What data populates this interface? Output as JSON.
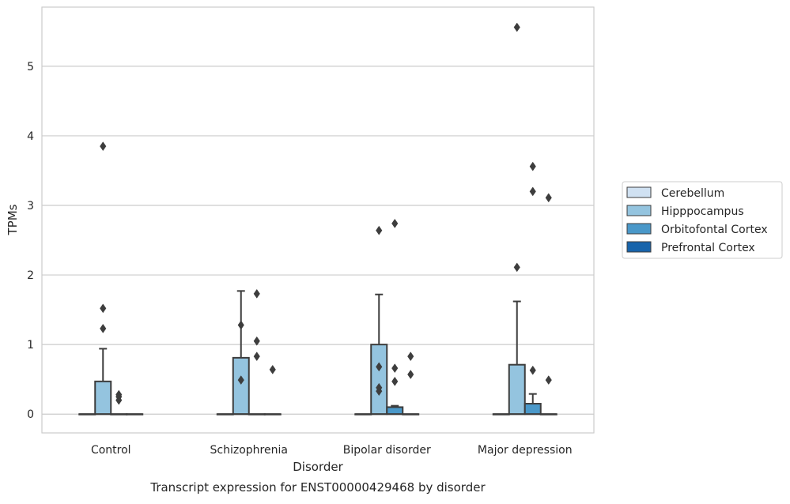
{
  "chart_data": {
    "type": "box",
    "title": "Transcript expression for ENST00000429468 by disorder",
    "xlabel": "Disorder",
    "ylabel": "TPMs",
    "ylim": [
      -0.27,
      5.85
    ],
    "yticks": [
      0,
      1,
      2,
      3,
      4,
      5
    ],
    "grid": "horizontal",
    "legend_position": "right",
    "categories": [
      "Control",
      "Schizophrenia",
      "Bipolar disorder",
      "Major depression"
    ],
    "series": [
      {
        "name": "Cerebellum",
        "color": "#d0e1f2",
        "boxes": [
          {
            "q1": 0,
            "median": 0,
            "q3": 0,
            "whisker_low": 0,
            "whisker_high": 0,
            "outliers": []
          },
          {
            "q1": 0,
            "median": 0,
            "q3": 0,
            "whisker_low": 0,
            "whisker_high": 0,
            "outliers": []
          },
          {
            "q1": 0,
            "median": 0,
            "q3": 0,
            "whisker_low": 0,
            "whisker_high": 0,
            "outliers": []
          },
          {
            "q1": 0,
            "median": 0,
            "q3": 0,
            "whisker_low": 0,
            "whisker_high": 0,
            "outliers": []
          }
        ]
      },
      {
        "name": "Hipppocampus",
        "color": "#94c4df",
        "boxes": [
          {
            "q1": 0,
            "median": 0,
            "q3": 0.47,
            "whisker_low": 0,
            "whisker_high": 0.94,
            "outliers": [
              1.52,
              1.23,
              3.85
            ]
          },
          {
            "q1": 0,
            "median": 0,
            "q3": 0.81,
            "whisker_low": 0,
            "whisker_high": 1.77,
            "outliers": [
              0.49,
              1.28
            ]
          },
          {
            "q1": 0,
            "median": 0,
            "q3": 1.0,
            "whisker_low": 0,
            "whisker_high": 1.72,
            "outliers": [
              0.33,
              0.38,
              0.68,
              2.64
            ]
          },
          {
            "q1": 0,
            "median": 0,
            "q3": 0.71,
            "whisker_low": 0,
            "whisker_high": 1.62,
            "outliers": [
              2.11,
              5.56
            ]
          }
        ]
      },
      {
        "name": "Orbitofontal Cortex",
        "color": "#4a98c9",
        "boxes": [
          {
            "q1": 0,
            "median": 0,
            "q3": 0,
            "whisker_low": 0,
            "whisker_high": 0,
            "outliers": [
              0.2,
              0.25,
              0.28
            ]
          },
          {
            "q1": 0,
            "median": 0,
            "q3": 0,
            "whisker_low": 0,
            "whisker_high": 0,
            "outliers": [
              0.83,
              1.05,
              1.73
            ]
          },
          {
            "q1": 0,
            "median": 0,
            "q3": 0.1,
            "whisker_low": 0,
            "whisker_high": 0.12,
            "outliers": [
              0.47,
              0.66,
              2.74
            ]
          },
          {
            "q1": 0,
            "median": 0,
            "q3": 0.15,
            "whisker_low": 0,
            "whisker_high": 0.29,
            "outliers": [
              0.63,
              3.2,
              3.56
            ]
          }
        ]
      },
      {
        "name": "Prefrontal Cortex",
        "color": "#1764ab",
        "boxes": [
          {
            "q1": 0,
            "median": 0,
            "q3": 0,
            "whisker_low": 0,
            "whisker_high": 0,
            "outliers": []
          },
          {
            "q1": 0,
            "median": 0,
            "q3": 0,
            "whisker_low": 0,
            "whisker_high": 0,
            "outliers": [
              0.64
            ]
          },
          {
            "q1": 0,
            "median": 0,
            "q3": 0,
            "whisker_low": 0,
            "whisker_high": 0,
            "outliers": [
              0.57,
              0.83
            ]
          },
          {
            "q1": 0,
            "median": 0,
            "q3": 0,
            "whisker_low": 0,
            "whisker_high": 0,
            "outliers": [
              0.49,
              3.11
            ]
          }
        ]
      }
    ]
  }
}
